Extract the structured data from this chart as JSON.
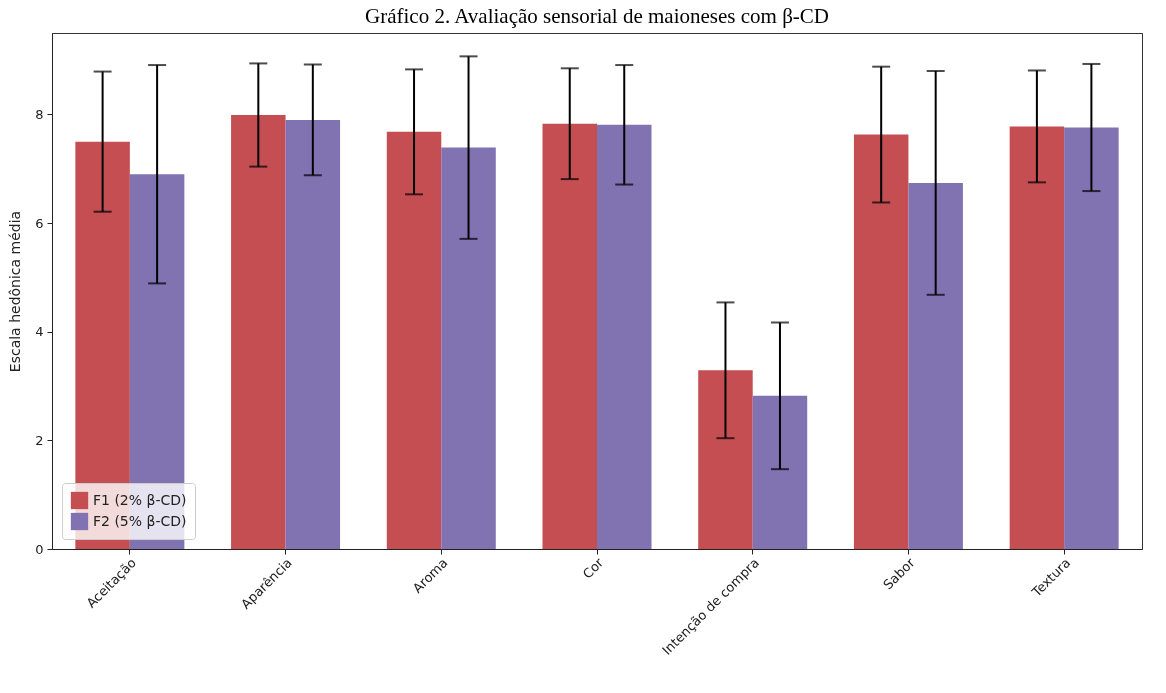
{
  "chart_data": {
    "type": "bar",
    "title": "Gráfico 2. Avaliação sensorial de maioneses com β-CD",
    "ylabel": "Escala hedônica média",
    "categories": [
      "Aceitação",
      "Aparência",
      "Aroma",
      "Cor",
      "Intenção de compra",
      "Sabor",
      "Textura"
    ],
    "series": [
      {
        "name": "F1 (2% β-CD)",
        "color": "#c44e52",
        "values": [
          7.5,
          7.99,
          7.68,
          7.83,
          3.29,
          7.63,
          7.78
        ],
        "errors": [
          1.29,
          0.95,
          1.15,
          1.02,
          1.25,
          1.25,
          1.03
        ]
      },
      {
        "name": "F2 (5% β-CD)",
        "color": "#8172b2",
        "values": [
          6.9,
          7.9,
          7.39,
          7.81,
          2.82,
          6.74,
          7.76
        ],
        "errors": [
          2.01,
          1.02,
          1.68,
          1.1,
          1.35,
          2.06,
          1.17
        ]
      }
    ],
    "ylim": [
      0,
      9.5
    ],
    "yticks": [
      0,
      2,
      4,
      6,
      8
    ],
    "grid": false,
    "legend": "bottom left"
  }
}
